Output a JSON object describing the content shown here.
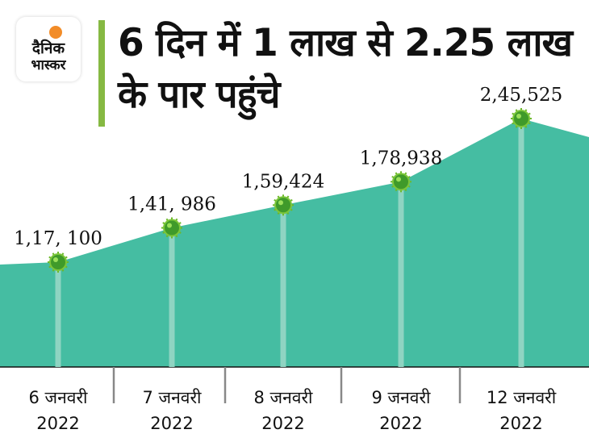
{
  "logo": {
    "line1": "दैनिक",
    "line2": "भास्कर",
    "brand_color": "#f28c28"
  },
  "header": {
    "title": "6 दिन में 1 लाख से 2.25 लाख के पार पहुंचे",
    "accent_color": "#86b943"
  },
  "chart_data": {
    "type": "area",
    "title": "6 दिन में 1 लाख से 2.25 लाख के पार पहुंचे",
    "categories": [
      [
        "6 जनवरी",
        "2022"
      ],
      [
        "7 जनवरी",
        "2022"
      ],
      [
        "8 जनवरी",
        "2022"
      ],
      [
        "9 जनवरी",
        "2022"
      ],
      [
        "12 जनवरी",
        "2022"
      ]
    ],
    "values": [
      117100,
      141986,
      159424,
      178938,
      245525
    ],
    "data_labels": [
      "1,17, 100",
      "1,41, 986",
      "1,59,424",
      "1,78,938",
      "2,45,525"
    ],
    "marker_icon": "virus-icon",
    "fill_color": "#45bda2",
    "grid": false,
    "legend": "none"
  }
}
